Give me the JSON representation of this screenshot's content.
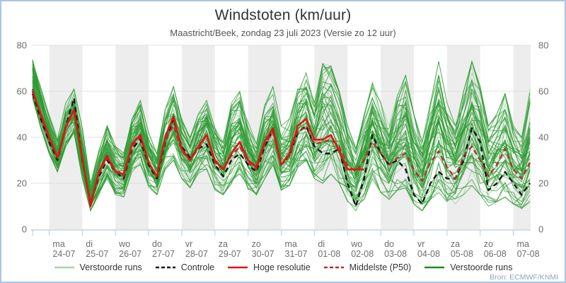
{
  "header": {
    "title": "Windstoten (km/uur)",
    "subtitle": "Maastricht/Beek, zondag 23 juli 2023 (Versie zo 12 uur)"
  },
  "source": "Bron: ECMWF/KNMI",
  "legend": [
    {
      "label": "Verstoorde runs",
      "color": "#a8d3a8",
      "dash": ""
    },
    {
      "label": "Controle",
      "color": "#111111",
      "dash": "5 3"
    },
    {
      "label": "Hoge resolutie",
      "color": "#e01414",
      "dash": ""
    },
    {
      "label": "Middelste (P50)",
      "color": "#b03030",
      "dash": "5 3"
    },
    {
      "label": "Verstoorde runs",
      "color": "#1e8c1e",
      "dash": ""
    }
  ],
  "chart_data": {
    "type": "line",
    "title": "Windstoten (km/uur)",
    "ylabel": "km/uur",
    "ylim": [
      0,
      80
    ],
    "yticks": [
      0,
      20,
      40,
      60,
      80
    ],
    "grid": "horizontal",
    "x_unit": "hours since zondag 23-07-2023 12:00",
    "x_step_hours": 6,
    "x_max_hours": 360,
    "days": [
      {
        "name": "ma",
        "date": "24-07",
        "shaded": true
      },
      {
        "name": "di",
        "date": "25-07",
        "shaded": false
      },
      {
        "name": "wo",
        "date": "26-07",
        "shaded": true
      },
      {
        "name": "do",
        "date": "27-07",
        "shaded": false
      },
      {
        "name": "vr",
        "date": "28-07",
        "shaded": true
      },
      {
        "name": "za",
        "date": "29-07",
        "shaded": false
      },
      {
        "name": "zo",
        "date": "30-07",
        "shaded": true
      },
      {
        "name": "ma",
        "date": "31-07",
        "shaded": false
      },
      {
        "name": "di",
        "date": "01-08",
        "shaded": true
      },
      {
        "name": "wo",
        "date": "02-08",
        "shaded": false
      },
      {
        "name": "do",
        "date": "03-08",
        "shaded": true
      },
      {
        "name": "vr",
        "date": "04-08",
        "shaded": false
      },
      {
        "name": "za",
        "date": "05-08",
        "shaded": true
      },
      {
        "name": "zo",
        "date": "06-08",
        "shaded": false
      },
      {
        "name": "ma",
        "date": "07-08",
        "shaded": true
      }
    ],
    "series": [
      {
        "name": "Controle",
        "color": "#111111",
        "dash": "7 5",
        "width": 2.3,
        "values": [
          59,
          48,
          38,
          30,
          45,
          57,
          30,
          11,
          23,
          30,
          25,
          22,
          35,
          39,
          28,
          22,
          38,
          48,
          36,
          31,
          35,
          37,
          28,
          23,
          30,
          33,
          28,
          25,
          36,
          43,
          28,
          32,
          42,
          45,
          36,
          33,
          33,
          35,
          20,
          10,
          22,
          41,
          33,
          28,
          30,
          26,
          15,
          11,
          20,
          25,
          22,
          22,
          30,
          44,
          38,
          17,
          20,
          25,
          20,
          15,
          20
        ]
      },
      {
        "name": "Middelste (P50)",
        "color": "#b03030",
        "dash": "7 5",
        "width": 2.3,
        "values": [
          61,
          49,
          39,
          31,
          45,
          52,
          30,
          12,
          24,
          31,
          25,
          23,
          36,
          40,
          29,
          23,
          39,
          45,
          34,
          30,
          35,
          41,
          29,
          26,
          32,
          36,
          29,
          26,
          37,
          42,
          28,
          32,
          43,
          44,
          37,
          38,
          39,
          36,
          28,
          25,
          30,
          38,
          33,
          28,
          31,
          33,
          26,
          21,
          29,
          34,
          27,
          22,
          32,
          36,
          30,
          23,
          28,
          35,
          26,
          22,
          29
        ]
      },
      {
        "name": "Hoge resolutie",
        "color": "#e01414",
        "dash": "",
        "width": 2.6,
        "values": [
          60,
          50,
          40,
          31,
          44,
          52,
          31,
          10,
          25,
          32,
          25,
          24,
          37,
          41,
          29,
          23,
          40,
          49,
          35,
          30,
          36,
          41,
          30,
          26,
          33,
          38,
          30,
          27,
          38,
          44,
          28,
          33,
          45,
          48,
          39,
          39,
          41,
          34,
          26,
          26,
          26
        ]
      }
    ],
    "ensemble": {
      "label": "Verstoorde runs",
      "count_light": 14,
      "count_dark": 44,
      "color_light": "#a8d3a8",
      "color_dark": "#2d9b32",
      "envelope_min": [
        57,
        44,
        33,
        25,
        36,
        42,
        22,
        8,
        15,
        22,
        15,
        14,
        25,
        28,
        18,
        15,
        26,
        30,
        22,
        18,
        23,
        26,
        17,
        15,
        20,
        24,
        17,
        15,
        22,
        28,
        17,
        19,
        27,
        30,
        22,
        20,
        24,
        20,
        12,
        8,
        13,
        22,
        16,
        13,
        17,
        18,
        11,
        8,
        13,
        16,
        12,
        11,
        15,
        19,
        15,
        10,
        12,
        14,
        11,
        9,
        12
      ],
      "envelope_max": [
        74,
        62,
        50,
        40,
        55,
        61,
        44,
        20,
        34,
        45,
        36,
        33,
        48,
        56,
        42,
        33,
        52,
        62,
        48,
        40,
        50,
        56,
        44,
        38,
        55,
        60,
        47,
        38,
        54,
        62,
        45,
        48,
        62,
        68,
        55,
        72,
        71,
        60,
        45,
        35,
        50,
        64,
        55,
        45,
        58,
        67,
        50,
        38,
        55,
        73,
        55,
        45,
        60,
        73,
        62,
        45,
        50,
        59,
        45,
        40,
        61
      ]
    },
    "style": {
      "band_fill": "#ededed",
      "gridline": "#e0e0e0",
      "axis": "#b9c9de",
      "tick_label": "#6e6e6e"
    }
  }
}
